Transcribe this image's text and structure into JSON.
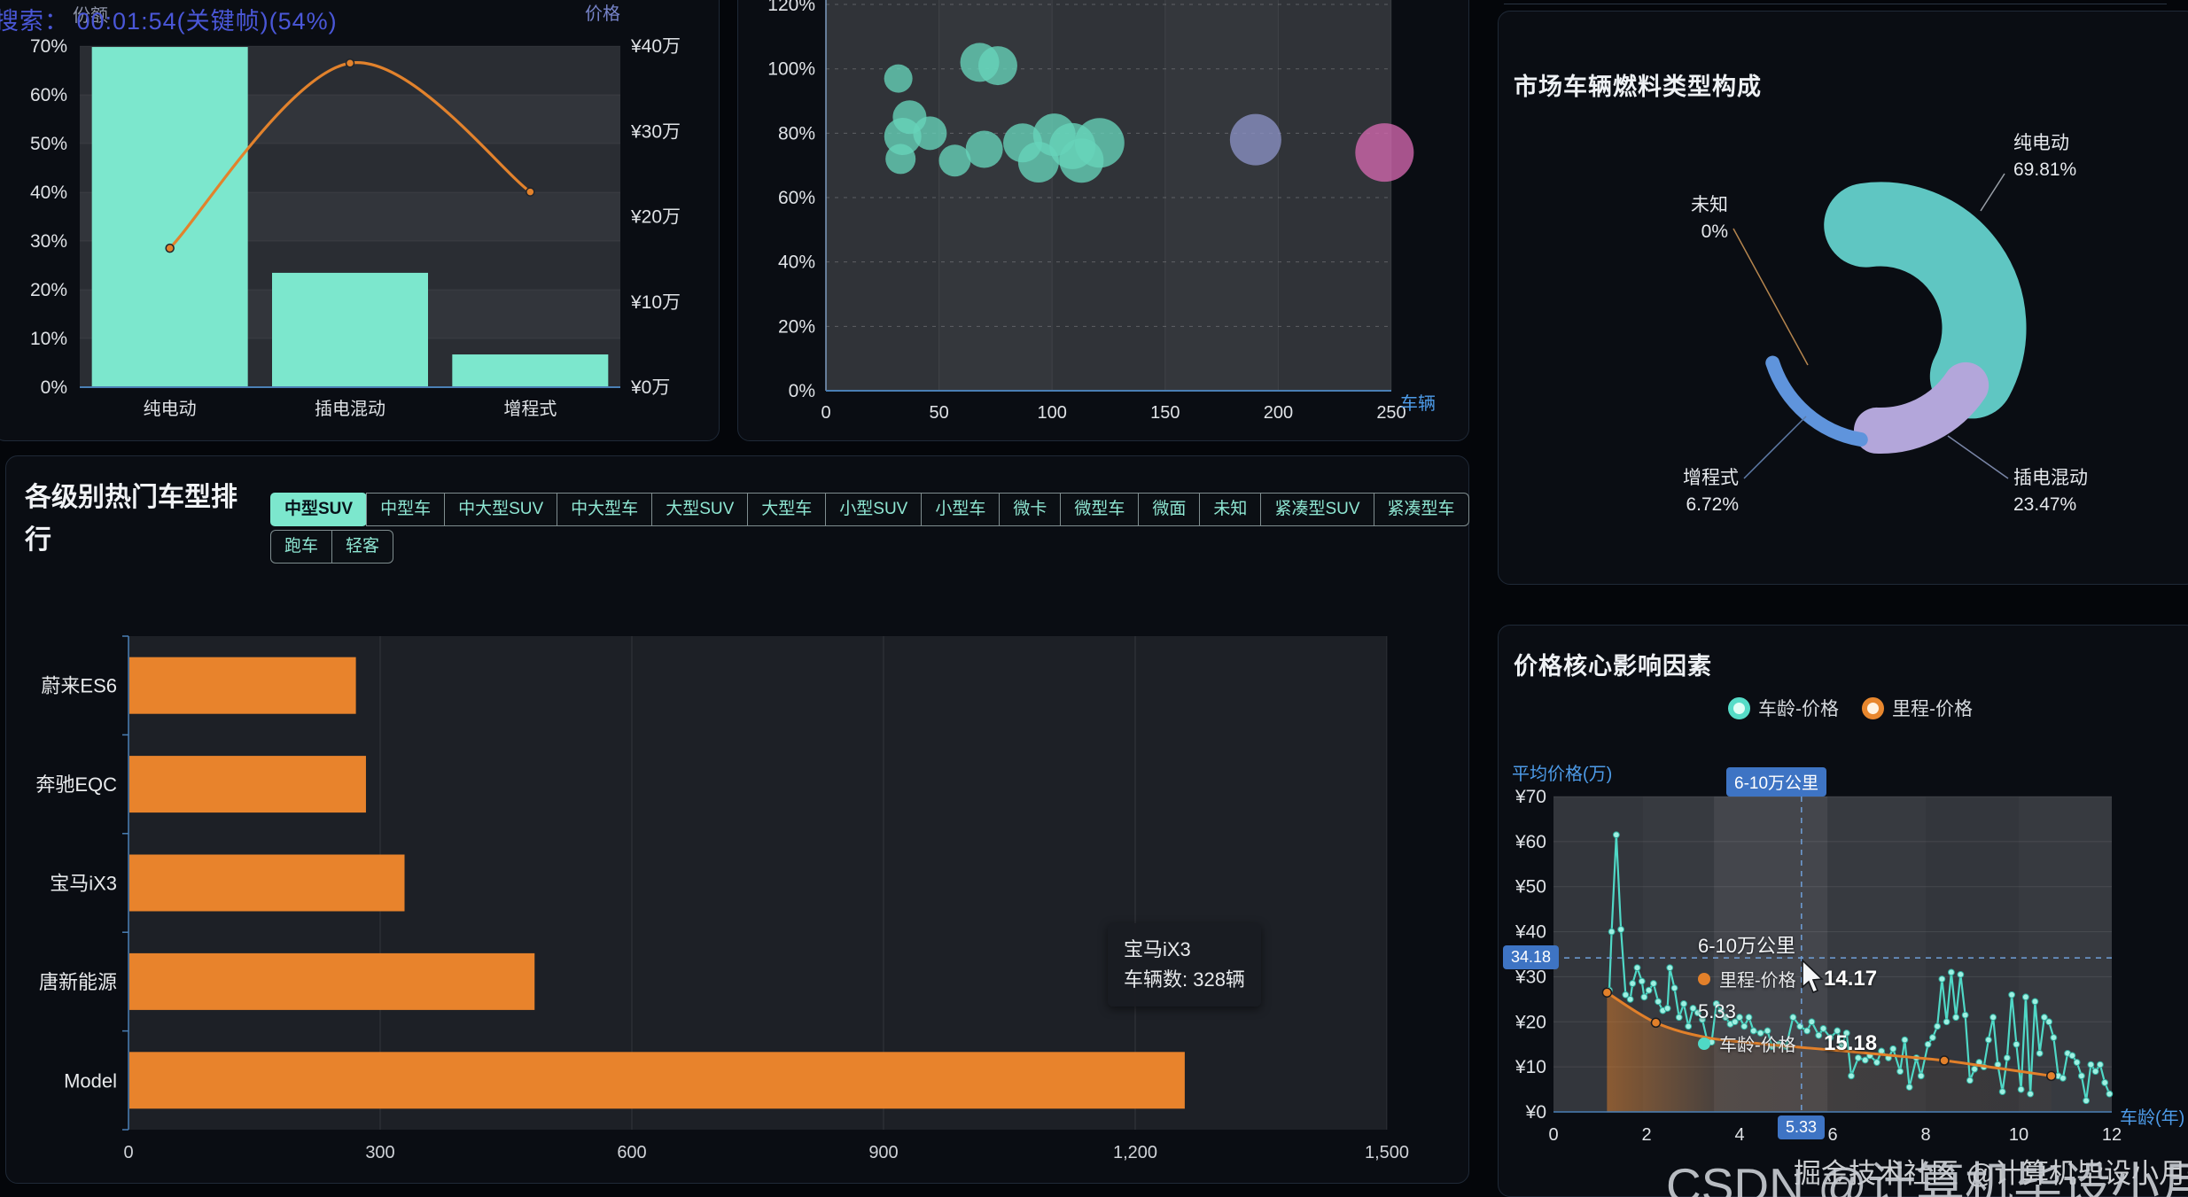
{
  "osd_text": "搜索： 00:01:54(关键帧)(54%)",
  "watermark_large": "CSDN @计算机毕设小月哥",
  "watermark_small": "掘金技术社区 @计算机毕设小月哥",
  "panels": {
    "donut": {
      "title": "市场车辆燃料类型构成"
    },
    "ranking": {
      "title": "各级别热门车型排行",
      "active_filter": "中型SUV",
      "filters_row1": [
        "中型SUV",
        "中型车",
        "中大型SUV",
        "中大型车",
        "大型SUV",
        "大型车",
        "小型SUV",
        "小型车",
        "微卡",
        "微型车",
        "微面",
        "未知",
        "紧凑型SUV",
        "紧凑型车"
      ],
      "filters_row2": [
        "跑车",
        "轻客"
      ],
      "tooltip": {
        "title": "宝马iX3",
        "value_line": "车辆数: 328辆"
      }
    },
    "price": {
      "title": "价格核心影响因素",
      "legend": [
        {
          "name": "车龄-价格",
          "color": "#56dcc8"
        },
        {
          "name": "里程-价格",
          "color": "#e8872e"
        }
      ],
      "crosshair": {
        "y_badge": "34.18",
        "x_badge": "5.33",
        "band_badge": "6-10万公里"
      },
      "tooltip": {
        "header1": "6-10万公里",
        "series1": "里程-价格",
        "value1": "14.17",
        "header2": "5.33",
        "series2": "车龄-价格",
        "value2": "15.18"
      }
    }
  },
  "chart_data": [
    {
      "id": "fuel-share-pareto",
      "type": "bar",
      "categories": [
        "纯电动",
        "插电混动",
        "增程式"
      ],
      "series": [
        {
          "name": "份额",
          "type": "bar",
          "axis": "left",
          "color": "#7ce7cd",
          "values": [
            69.81,
            23.47,
            6.72
          ]
        },
        {
          "name": "价格",
          "type": "line",
          "axis": "right",
          "color": "#e2822c",
          "values": [
            16.3,
            38.0,
            22.9
          ]
        }
      ],
      "y_left": {
        "name": "份额",
        "min": 0,
        "max": 70,
        "step": 10,
        "format": "{n}%"
      },
      "y_right": {
        "name": "价格",
        "min": 0,
        "max": 40,
        "step": 10,
        "format": "¥{n}万"
      },
      "legend_position": "none",
      "grid": true
    },
    {
      "id": "brand-residual-bubbles",
      "type": "scatter",
      "xlabel": "车辆",
      "x_range": [
        0,
        250
      ],
      "x_step": 50,
      "ylabel": "",
      "y_range": [
        0,
        120
      ],
      "y_step": 20,
      "y_format": "{n}%",
      "points": [
        {
          "x": 32,
          "y": 97,
          "r": 16,
          "c": "teal"
        },
        {
          "x": 68,
          "y": 102,
          "r": 22,
          "c": "teal"
        },
        {
          "x": 76,
          "y": 101,
          "r": 22,
          "c": "teal"
        },
        {
          "x": 37,
          "y": 85,
          "r": 19,
          "c": "teal"
        },
        {
          "x": 34,
          "y": 79,
          "r": 21,
          "c": "teal"
        },
        {
          "x": 46,
          "y": 80,
          "r": 19,
          "c": "teal"
        },
        {
          "x": 33,
          "y": 72,
          "r": 17,
          "c": "teal"
        },
        {
          "x": 57,
          "y": 71.5,
          "r": 18,
          "c": "teal"
        },
        {
          "x": 70,
          "y": 75,
          "r": 21,
          "c": "teal"
        },
        {
          "x": 87,
          "y": 77,
          "r": 22,
          "c": "teal"
        },
        {
          "x": 94,
          "y": 71,
          "r": 23,
          "c": "teal"
        },
        {
          "x": 101,
          "y": 79.5,
          "r": 24,
          "c": "teal"
        },
        {
          "x": 109,
          "y": 76,
          "r": 26,
          "c": "teal"
        },
        {
          "x": 113,
          "y": 71.5,
          "r": 25,
          "c": "teal"
        },
        {
          "x": 121,
          "y": 77,
          "r": 28,
          "c": "teal"
        },
        {
          "x": 190,
          "y": 78,
          "r": 29,
          "c": "purple"
        },
        {
          "x": 247,
          "y": 74,
          "r": 33,
          "c": "pink"
        }
      ],
      "colors": {
        "teal": "#66d4ba",
        "purple": "#8a91c4",
        "pink": "#d368ae"
      }
    },
    {
      "id": "fuel-type-donut",
      "type": "pie",
      "title": "市场车辆燃料类型构成",
      "slices": [
        {
          "label": "纯电动",
          "value": 69.81,
          "pct_label": "69.81%",
          "color": "#5fc6c2"
        },
        {
          "label": "插电混动",
          "value": 23.47,
          "pct_label": "23.47%",
          "color": "#b3a6da"
        },
        {
          "label": "增程式",
          "value": 6.72,
          "pct_label": "6.72%",
          "color": "#5f94dc"
        },
        {
          "label": "未知",
          "value": 0,
          "pct_label": "0%",
          "color": "#b5854e"
        }
      ]
    },
    {
      "id": "hot-models-ranking",
      "type": "bar",
      "title": "各级别热门车型排行",
      "orientation": "horizontal",
      "categories": [
        "蔚来ES6",
        "奔驰EQC",
        "宝马iX3",
        "唐新能源",
        "Model"
      ],
      "values": [
        270,
        282,
        328,
        483,
        1258
      ],
      "value_unit": "辆",
      "x_ticks": [
        "0",
        "300",
        "600",
        "900",
        "1,200",
        "1,500"
      ],
      "x_max": 1500,
      "color": "#e8832c",
      "highlight": {
        "category": "宝马iX3",
        "value": 328
      }
    },
    {
      "id": "price-factors",
      "type": "line",
      "title": "价格核心影响因素",
      "xlabel": "车龄(年)",
      "x_range": [
        0,
        12
      ],
      "x_step": 2,
      "ylabel": "平均价格(万)",
      "y_range": [
        0,
        70
      ],
      "y_step": 10,
      "y_format": "¥{n}",
      "bands": {
        "edges": [
          0,
          1.92,
          3.45,
          5.89,
          8,
          10,
          12
        ],
        "highlight_index": 2,
        "highlight_label": "6-10万公里"
      },
      "crosshair": {
        "x": 5.33,
        "y": 34.18
      },
      "series": [
        {
          "name": "车龄-价格",
          "color": "#4fd8c6",
          "smooth": false,
          "markers": "all",
          "points": [
            [
              1.2,
              27
            ],
            [
              1.25,
              40
            ],
            [
              1.35,
              61.5
            ],
            [
              1.45,
              40.5
            ],
            [
              1.55,
              26
            ],
            [
              1.65,
              25
            ],
            [
              1.7,
              28.5
            ],
            [
              1.8,
              32
            ],
            [
              1.9,
              29
            ],
            [
              1.95,
              25.5
            ],
            [
              2.05,
              27
            ],
            [
              2.15,
              28.5
            ],
            [
              2.25,
              24.5
            ],
            [
              2.35,
              22.5
            ],
            [
              2.45,
              23
            ],
            [
              2.5,
              32
            ],
            [
              2.6,
              27.5
            ],
            [
              2.7,
              21
            ],
            [
              2.8,
              24
            ],
            [
              2.9,
              19
            ],
            [
              3,
              23
            ],
            [
              3.1,
              22
            ],
            [
              3.2,
              20.5
            ],
            [
              3.3,
              16
            ],
            [
              3.4,
              15.5
            ],
            [
              3.5,
              24
            ],
            [
              3.6,
              22.5
            ],
            [
              3.7,
              21
            ],
            [
              3.8,
              19.5
            ],
            [
              3.9,
              20
            ],
            [
              4,
              21
            ],
            [
              4.1,
              19
            ],
            [
              4.2,
              21
            ],
            [
              4.3,
              18
            ],
            [
              4.45,
              17.5
            ],
            [
              4.6,
              18
            ],
            [
              4.7,
              14.5
            ],
            [
              4.85,
              15
            ],
            [
              5,
              14.5
            ],
            [
              5.15,
              21
            ],
            [
              5.3,
              19
            ],
            [
              5.45,
              18
            ],
            [
              5.55,
              20
            ],
            [
              5.7,
              17
            ],
            [
              5.8,
              18.5
            ],
            [
              5.95,
              16.5
            ],
            [
              6.1,
              18
            ],
            [
              6.2,
              15
            ],
            [
              6.3,
              17.5
            ],
            [
              6.4,
              8
            ],
            [
              6.55,
              12
            ],
            [
              6.7,
              11.5
            ],
            [
              6.8,
              12.5
            ],
            [
              6.95,
              11
            ],
            [
              7.05,
              13.5
            ],
            [
              7.2,
              12
            ],
            [
              7.3,
              14
            ],
            [
              7.45,
              9
            ],
            [
              7.55,
              16
            ],
            [
              7.65,
              5.5
            ],
            [
              7.8,
              12
            ],
            [
              7.9,
              8
            ],
            [
              8.05,
              15
            ],
            [
              8.15,
              16.5
            ],
            [
              8.25,
              19
            ],
            [
              8.35,
              29.5
            ],
            [
              8.45,
              20
            ],
            [
              8.55,
              31
            ],
            [
              8.65,
              21
            ],
            [
              8.75,
              30.5
            ],
            [
              8.85,
              21.5
            ],
            [
              8.95,
              7
            ],
            [
              9.05,
              9.5
            ],
            [
              9.15,
              11
            ],
            [
              9.25,
              10
            ],
            [
              9.35,
              16
            ],
            [
              9.45,
              21
            ],
            [
              9.55,
              10.5
            ],
            [
              9.65,
              4.5
            ],
            [
              9.75,
              12
            ],
            [
              9.85,
              26
            ],
            [
              9.95,
              15
            ],
            [
              10.05,
              5
            ],
            [
              10.15,
              25.5
            ],
            [
              10.25,
              4
            ],
            [
              10.35,
              24.5
            ],
            [
              10.45,
              13
            ],
            [
              10.55,
              21
            ],
            [
              10.65,
              20
            ],
            [
              10.75,
              16.5
            ],
            [
              10.85,
              8
            ],
            [
              10.95,
              7.5
            ],
            [
              11.05,
              13
            ],
            [
              11.15,
              12.5
            ],
            [
              11.25,
              11
            ],
            [
              11.35,
              8
            ],
            [
              11.45,
              2.5
            ],
            [
              11.55,
              10.5
            ],
            [
              11.65,
              9
            ],
            [
              11.75,
              10.5
            ],
            [
              11.85,
              6.5
            ],
            [
              11.95,
              4
            ]
          ]
        },
        {
          "name": "里程-价格",
          "color": "#e2802a",
          "smooth": true,
          "markers": [
            0,
            1,
            7,
            9
          ],
          "area": true,
          "points": [
            [
              1.15,
              26.5
            ],
            [
              2.2,
              19.8
            ],
            [
              3.3,
              16.5
            ],
            [
              4.4,
              15.2
            ],
            [
              5.5,
              14.17
            ],
            [
              6.5,
              13.3
            ],
            [
              7.4,
              12.4
            ],
            [
              8.4,
              11.4
            ],
            [
              9.5,
              9.8
            ],
            [
              10.7,
              8.0
            ]
          ]
        }
      ]
    }
  ]
}
